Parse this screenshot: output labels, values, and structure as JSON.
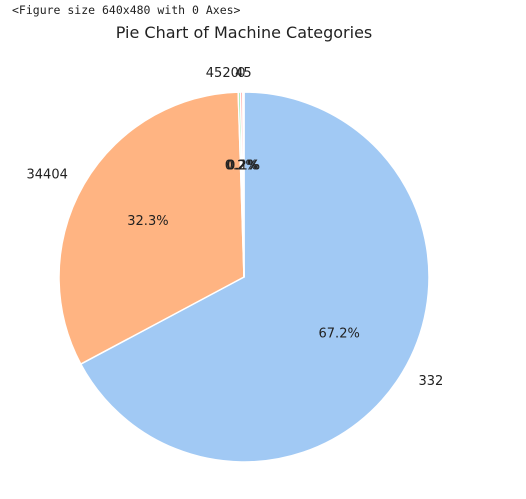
{
  "output": {
    "figure_repr": "<Figure size 640x480 with 0 Axes>"
  },
  "chart_data": {
    "type": "pie",
    "title": "Pie Chart of Machine Categories",
    "start_angle_deg": 90,
    "direction": "clockwise",
    "slices": [
      {
        "label": "332",
        "percent": 67.2,
        "pct_label": "67.2%",
        "color": "#a1c9f4"
      },
      {
        "label": "34404",
        "percent": 32.3,
        "pct_label": "32.3%",
        "color": "#ffb482"
      },
      {
        "label": "4520",
        "percent": 0.2,
        "pct_label": "0.2%",
        "color": "#8de5a1"
      },
      {
        "label": "0",
        "percent": 0.2,
        "pct_label": "0.2%",
        "color": "#ff9f9b"
      },
      {
        "label": "45",
        "percent": 0.1,
        "pct_label": "0.1%",
        "color": "#d0bbff"
      }
    ],
    "edge_color": "#ffffff"
  }
}
